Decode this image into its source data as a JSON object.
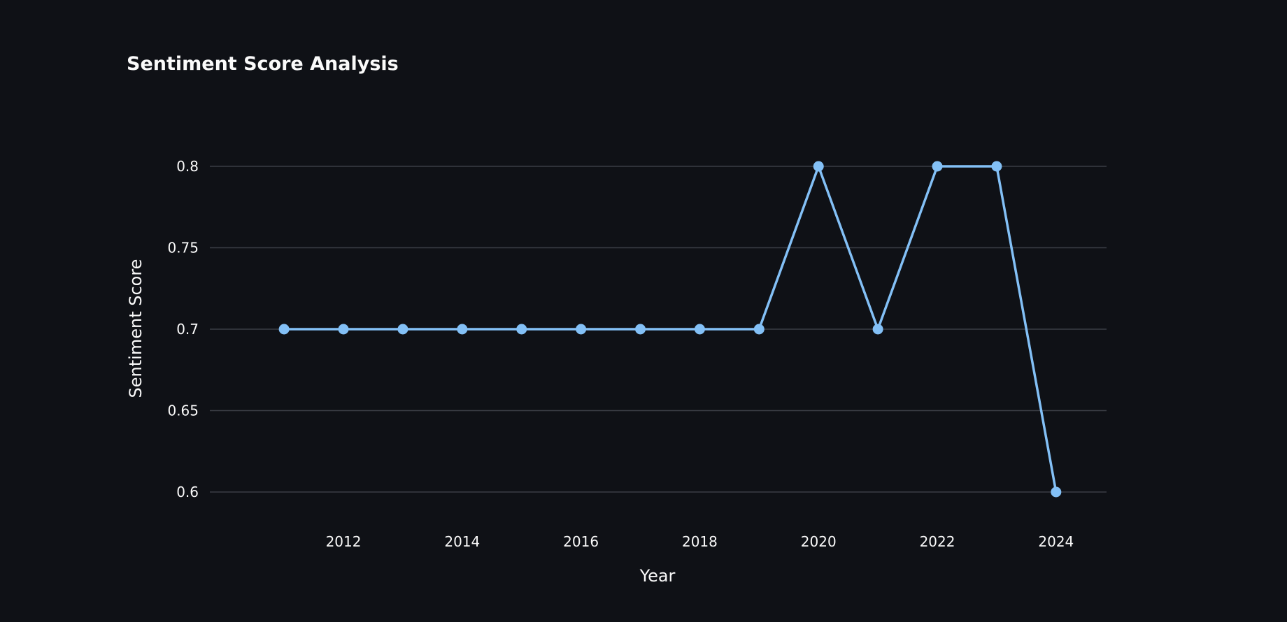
{
  "chart_data": {
    "type": "line",
    "title": "Sentiment Score Analysis",
    "xlabel": "Year",
    "ylabel": "Sentiment Score",
    "x": [
      2011,
      2012,
      2013,
      2014,
      2015,
      2016,
      2017,
      2018,
      2019,
      2020,
      2021,
      2022,
      2023,
      2024
    ],
    "series": [
      {
        "values": [
          0.7,
          0.7,
          0.7,
          0.7,
          0.7,
          0.7,
          0.7,
          0.7,
          0.7,
          0.8,
          0.7,
          0.8,
          0.8,
          0.6
        ]
      }
    ],
    "x_ticks": [
      2012,
      2014,
      2016,
      2018,
      2020,
      2022,
      2024
    ],
    "y_ticks": [
      0.6,
      0.65,
      0.7,
      0.75,
      0.8
    ],
    "y_tick_labels": [
      "0.6",
      "0.65",
      "0.7",
      "0.75",
      "0.8"
    ],
    "xlim": [
      2009.75,
      2024.85
    ],
    "ylim": [
      0.6,
      0.8
    ],
    "grid": "horizontal",
    "legend": "none",
    "colors": {
      "background": "#0f1116",
      "series": "#83c0f6",
      "grid": "#3a3d45",
      "text": "#fafafa"
    }
  }
}
